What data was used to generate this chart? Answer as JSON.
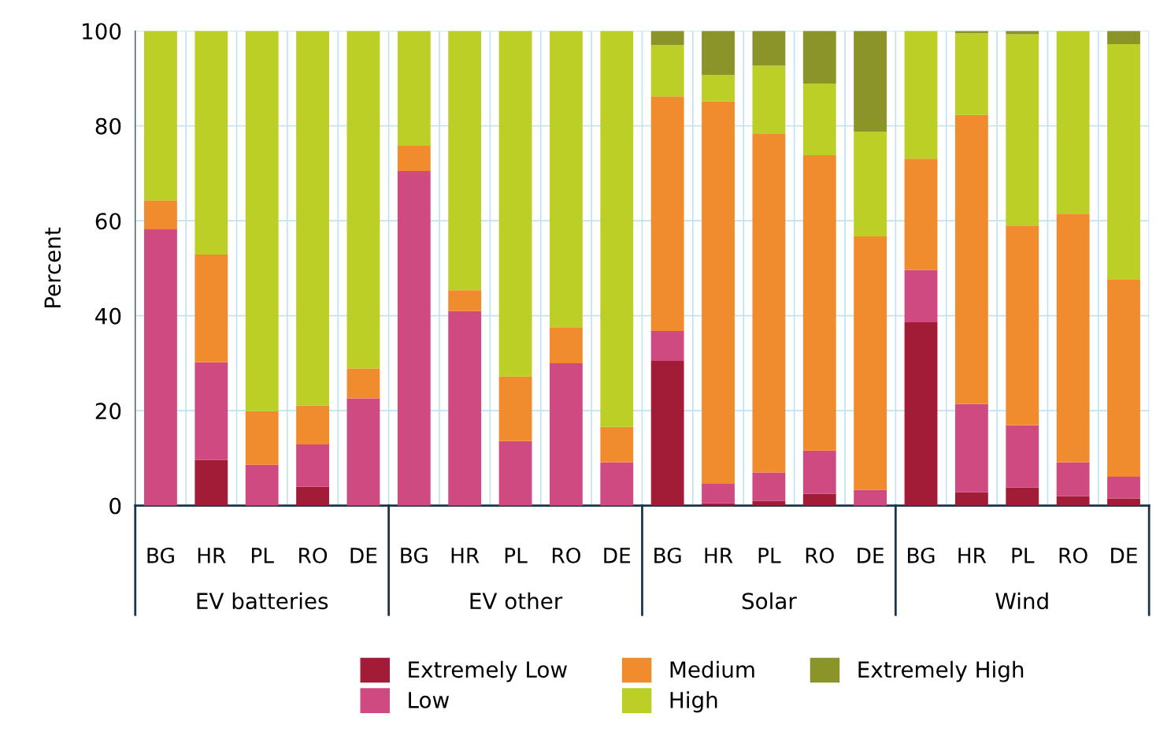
{
  "chart_data": {
    "type": "bar",
    "stacked": true,
    "ylabel": "Percent",
    "categories": [
      "BG",
      "HR",
      "PL",
      "RO",
      "DE",
      "BG",
      "HR",
      "PL",
      "RO",
      "DE",
      "BG",
      "HR",
      "PL",
      "RO",
      "DE",
      "BG",
      "HR",
      "PL",
      "RO",
      "DE"
    ],
    "annotations": [
      "EV batteries",
      "EV other",
      "Solar",
      "Wind"
    ],
    "series": [
      {
        "name": "Extremely Low",
        "color": "#a31c37",
        "values": [
          0,
          9.6,
          0,
          4.0,
          0,
          0,
          0,
          0,
          0,
          0,
          30.5,
          0.5,
          1.0,
          2.5,
          0,
          38.6,
          2.8,
          3.8,
          2.0,
          1.5
        ]
      },
      {
        "name": "Low",
        "color": "#d04a82",
        "values": [
          58.2,
          20.6,
          8.6,
          8.9,
          22.6,
          70.5,
          41.0,
          13.6,
          30.0,
          9.1,
          6.3,
          4.1,
          6.0,
          9.1,
          3.3,
          11.0,
          18.6,
          13.1,
          7.1,
          4.6
        ]
      },
      {
        "name": "Medium",
        "color": "#f18c2e",
        "values": [
          6.1,
          22.7,
          11.3,
          8.2,
          6.3,
          5.3,
          4.4,
          13.6,
          7.6,
          7.5,
          49.4,
          80.6,
          71.4,
          62.2,
          53.4,
          23.5,
          60.9,
          42.1,
          52.4,
          41.5
        ]
      },
      {
        "name": "High",
        "color": "#bccf26",
        "values": [
          35.7,
          47.1,
          80.1,
          78.9,
          71.1,
          24.2,
          54.6,
          72.8,
          62.4,
          83.4,
          10.8,
          5.5,
          14.3,
          15.1,
          22.1,
          26.9,
          17.2,
          40.3,
          38.5,
          49.6
        ]
      },
      {
        "name": "Extremely High",
        "color": "#8a9428",
        "values": [
          0,
          0,
          0,
          0,
          0,
          0,
          0,
          0,
          0,
          0,
          3.0,
          9.3,
          7.3,
          11.1,
          21.2,
          0,
          0.5,
          0.7,
          0,
          2.8
        ]
      }
    ],
    "ylim": [
      0,
      100
    ],
    "yticks": [
      0,
      20,
      40,
      60,
      80,
      100
    ],
    "grid": true,
    "legend": "bottom"
  }
}
